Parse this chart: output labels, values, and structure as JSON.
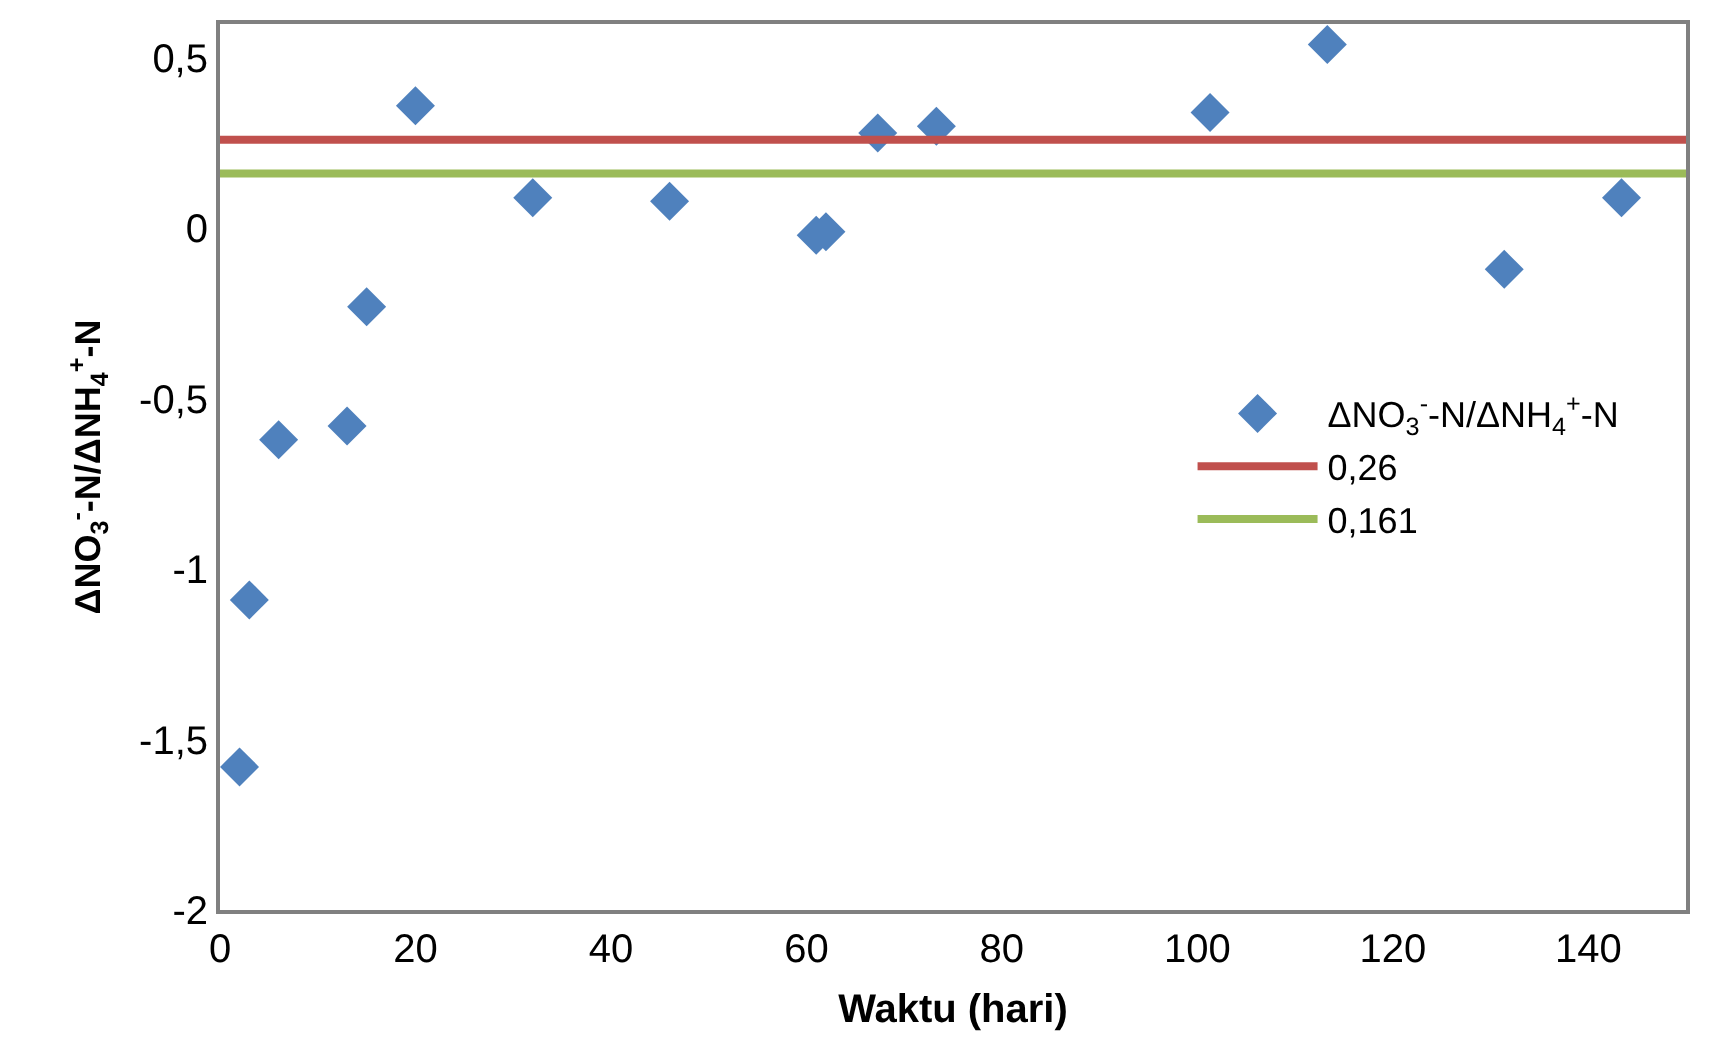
{
  "chart_data": {
    "type": "scatter",
    "xlabel": "Waktu (hari)",
    "ylabel": "ΔNO$_{3}$$^{-}$-N/ΔNH$_{4}$$^{+}$-N",
    "xlim": [
      0,
      150
    ],
    "xticks": [
      0,
      20,
      40,
      60,
      80,
      100,
      120,
      140
    ],
    "ylim": [
      -2,
      0.6
    ],
    "yticks": [
      {
        "value": -2,
        "label": "-2"
      },
      {
        "value": -1.5,
        "label": "-1,5"
      },
      {
        "value": -1,
        "label": "-1"
      },
      {
        "value": -0.5,
        "label": "-0,5"
      },
      {
        "value": 0,
        "label": "0"
      },
      {
        "value": 0.5,
        "label": "0,5"
      }
    ],
    "marker": "diamond",
    "legend": "right",
    "series": [
      {
        "name": "ΔNO$_{3}$$^{-}$-N/ΔNH$_{4}$$^{+}$-N",
        "color": "#4f81bd",
        "x": [
          2,
          3,
          6,
          13,
          15,
          20,
          32,
          46,
          61,
          62,
          67.3,
          73.3,
          101.3,
          113.3,
          131.4,
          143.4
        ],
        "values": [
          -1.58,
          -1.09,
          -0.62,
          -0.58,
          -0.23,
          0.36,
          0.09,
          0.08,
          -0.02,
          -0.01,
          0.28,
          0.3,
          0.34,
          0.54,
          -0.12,
          0.09
        ]
      },
      {
        "name": "0,26",
        "type": "line",
        "marker": "none",
        "color": "#c0504d",
        "x": [
          0,
          150
        ],
        "values": [
          0.26,
          0.26
        ]
      },
      {
        "name": "0,161",
        "type": "line",
        "marker": "none",
        "color": "#9bbb59",
        "x": [
          0,
          150
        ],
        "values": [
          0.161,
          0.161
        ]
      }
    ]
  }
}
